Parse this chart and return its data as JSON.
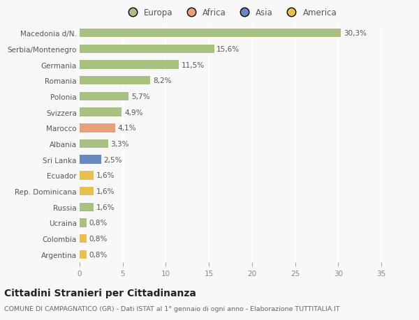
{
  "categories": [
    "Macedonia d/N.",
    "Serbia/Montenegro",
    "Germania",
    "Romania",
    "Polonia",
    "Svizzera",
    "Marocco",
    "Albania",
    "Sri Lanka",
    "Ecuador",
    "Rep. Dominicana",
    "Russia",
    "Ucraina",
    "Colombia",
    "Argentina"
  ],
  "values": [
    30.3,
    15.6,
    11.5,
    8.2,
    5.7,
    4.9,
    4.1,
    3.3,
    2.5,
    1.6,
    1.6,
    1.6,
    0.8,
    0.8,
    0.8
  ],
  "labels": [
    "30,3%",
    "15,6%",
    "11,5%",
    "8,2%",
    "5,7%",
    "4,9%",
    "4,1%",
    "3,3%",
    "2,5%",
    "1,6%",
    "1,6%",
    "1,6%",
    "0,8%",
    "0,8%",
    "0,8%"
  ],
  "colors": [
    "#a8c080",
    "#a8c080",
    "#a8c080",
    "#a8c080",
    "#a8c080",
    "#a8c080",
    "#e8a07a",
    "#a8c080",
    "#6888c0",
    "#e8c050",
    "#e8c050",
    "#a8c080",
    "#a8c080",
    "#e8c050",
    "#e8c050"
  ],
  "legend_labels": [
    "Europa",
    "Africa",
    "Asia",
    "America"
  ],
  "legend_colors": [
    "#a8c080",
    "#e8a07a",
    "#6888c0",
    "#e8c050"
  ],
  "xlim": [
    0,
    35
  ],
  "xticks": [
    0,
    5,
    10,
    15,
    20,
    25,
    30,
    35
  ],
  "title": "Cittadini Stranieri per Cittadinanza",
  "subtitle": "COMUNE DI CAMPAGNATICO (GR) - Dati ISTAT al 1° gennaio di ogni anno - Elaborazione TUTTITALIA.IT",
  "background_color": "#f8f8f8",
  "bar_height": 0.55,
  "label_fontsize": 7.5,
  "ytick_fontsize": 7.5,
  "xtick_fontsize": 7.5,
  "title_fontsize": 10,
  "subtitle_fontsize": 6.8,
  "legend_fontsize": 8.5
}
